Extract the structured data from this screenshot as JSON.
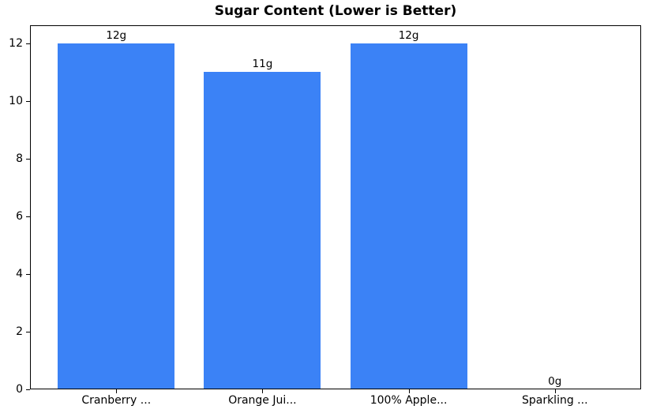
{
  "chart_data": {
    "type": "bar",
    "title": "Sugar Content (Lower is Better)",
    "categories": [
      "Cranberry ...",
      "Orange Jui...",
      "100% Apple...",
      "Sparkling ..."
    ],
    "values": [
      12,
      11,
      12,
      0
    ],
    "bar_labels": [
      "12g",
      "11g",
      "12g",
      "0g"
    ],
    "xlabel": "",
    "ylabel": "",
    "yticks": [
      0,
      2,
      4,
      6,
      8,
      10,
      12
    ],
    "ylim": [
      0,
      12.63
    ],
    "xlim": [
      -0.59,
      3.59
    ],
    "bar_width": 0.8,
    "bar_color": "#3b82f6",
    "text_color": "#000000",
    "background_color": "#ffffff",
    "grid": false,
    "legend": "none"
  }
}
